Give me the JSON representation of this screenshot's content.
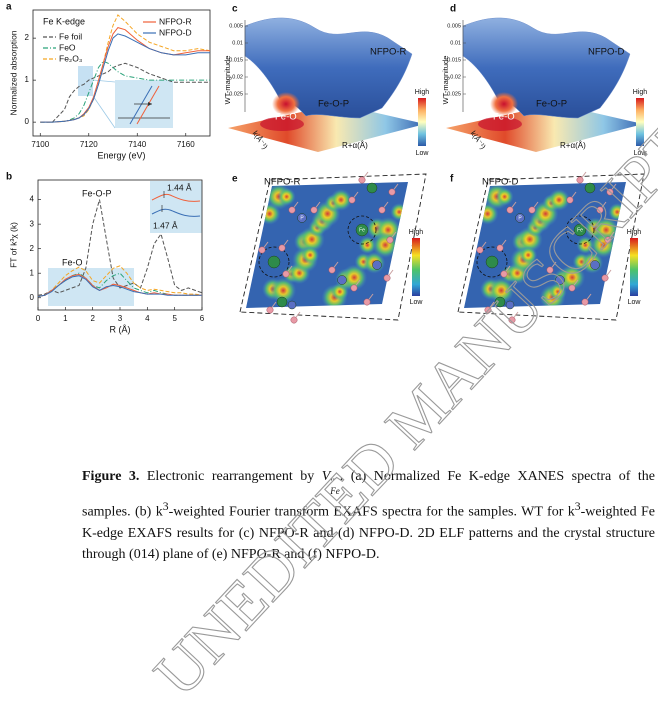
{
  "chart_data": [
    {
      "type": "line",
      "panel_label": "a",
      "annotation": "Fe K-edge",
      "x_label": "Energy (eV)",
      "y_label": "Normalized absorption",
      "x": [
        7100,
        7105,
        7110,
        7112,
        7114,
        7116,
        7118,
        7120,
        7122,
        7124,
        7126,
        7128,
        7130,
        7132,
        7135,
        7140,
        7145,
        7150,
        7155,
        7160,
        7165,
        7170
      ],
      "series": [
        {
          "name": "Fe foil",
          "color": "#555555",
          "dash": "dashed",
          "values": [
            0,
            0,
            0.3,
            0.6,
            0.75,
            0.85,
            0.9,
            1.0,
            1.05,
            1.1,
            1.15,
            1.2,
            1.3,
            1.35,
            1.4,
            1.3,
            1.15,
            1.05,
            0.95,
            0.95,
            0.95,
            0.95
          ]
        },
        {
          "name": "FeO",
          "color": "#2aa37a",
          "dash": "dashdot",
          "values": [
            0,
            0,
            0.02,
            0.05,
            0.1,
            0.2,
            0.4,
            0.7,
            1.0,
            1.3,
            1.45,
            1.4,
            1.3,
            1.2,
            1.1,
            1.05,
            1.0,
            1.0,
            1.0,
            1.0,
            1.0,
            1.0
          ]
        },
        {
          "name": "Fe₂O₃",
          "color": "#f5a623",
          "dash": "dashed",
          "values": [
            0,
            0,
            0.02,
            0.04,
            0.07,
            0.1,
            0.15,
            0.3,
            0.55,
            0.9,
            1.4,
            1.9,
            2.3,
            2.55,
            2.4,
            2.1,
            1.9,
            1.8,
            1.7,
            1.7,
            1.75,
            1.7
          ]
        },
        {
          "name": "NFPO-R",
          "color": "#f0603a",
          "dash": "solid",
          "values": [
            0,
            0,
            0.02,
            0.04,
            0.06,
            0.1,
            0.2,
            0.35,
            0.6,
            1.0,
            1.4,
            1.8,
            2.1,
            2.25,
            2.2,
            1.95,
            1.75,
            1.65,
            1.6,
            1.65,
            1.7,
            1.7
          ]
        },
        {
          "name": "NFPO-D",
          "color": "#3a6fb5",
          "dash": "solid",
          "values": [
            0,
            0,
            0.02,
            0.04,
            0.06,
            0.1,
            0.18,
            0.32,
            0.55,
            0.9,
            1.3,
            1.7,
            2.0,
            2.1,
            2.05,
            1.9,
            1.75,
            1.65,
            1.6,
            1.6,
            1.65,
            1.65
          ]
        }
      ],
      "xlim": [
        7097,
        7170
      ],
      "xticks": [
        7100,
        7120,
        7140,
        7160
      ],
      "ylim": [
        -0.33,
        2.67
      ],
      "yticks": [
        0,
        1,
        2
      ]
    },
    {
      "type": "line",
      "panel_label": "b",
      "x_label": "R (Å)",
      "y_label": "FT of k³χ (k)",
      "annotations": [
        "Fe-O-P",
        "Fe-O",
        "1.44 Å",
        "1.47 Å"
      ],
      "x": [
        0,
        0.25,
        0.5,
        0.75,
        1,
        1.25,
        1.5,
        1.75,
        2,
        2.25,
        2.5,
        2.75,
        3,
        3.25,
        3.5,
        3.75,
        4,
        4.25,
        4.5,
        4.75,
        5,
        5.25,
        5.5,
        5.75,
        6
      ],
      "series": [
        {
          "color": "#555555",
          "dash": "dashed",
          "values": [
            0.1,
            0.15,
            0.3,
            0.2,
            0.3,
            0.4,
            0.5,
            1.2,
            3.0,
            4.0,
            2.4,
            0.8,
            0.4,
            0.5,
            0.6,
            0.4,
            1.2,
            2.2,
            2.6,
            1.6,
            0.5,
            0.3,
            0.4,
            0.3,
            0.2
          ]
        },
        {
          "color": "#2aa37a",
          "dash": "dashdot",
          "values": [
            0.05,
            0.1,
            0.3,
            0.5,
            0.7,
            0.9,
            1.0,
            0.8,
            0.5,
            0.4,
            0.7,
            0.9,
            1.0,
            0.7,
            0.4,
            0.3,
            0.2,
            0.3,
            0.2,
            0.15,
            0.1,
            0.1,
            0.1,
            0.1,
            0.1
          ]
        },
        {
          "color": "#f5a623",
          "dash": "dashed",
          "values": [
            0.05,
            0.1,
            0.3,
            0.6,
            0.9,
            1.1,
            1.25,
            1.1,
            0.7,
            0.6,
            0.9,
            1.2,
            1.3,
            1.0,
            0.6,
            0.4,
            0.3,
            0.35,
            0.3,
            0.25,
            0.2,
            0.2,
            0.15,
            0.15,
            0.1
          ]
        },
        {
          "color": "#f0603a",
          "dash": "solid",
          "values": [
            0.05,
            0.1,
            0.3,
            0.5,
            0.75,
            0.9,
            0.95,
            0.8,
            0.5,
            0.3,
            0.4,
            0.55,
            0.5,
            0.4,
            0.3,
            0.2,
            0.15,
            0.2,
            0.15,
            0.15,
            0.1,
            0.1,
            0.1,
            0.1,
            0.1
          ]
        },
        {
          "color": "#3a6fb5",
          "dash": "solid",
          "values": [
            0.05,
            0.1,
            0.25,
            0.5,
            0.7,
            0.85,
            0.9,
            0.75,
            0.45,
            0.3,
            0.45,
            0.5,
            0.45,
            0.35,
            0.25,
            0.2,
            0.15,
            0.15,
            0.15,
            0.1,
            0.1,
            0.1,
            0.1,
            0.1,
            0.1
          ]
        }
      ],
      "xlim": [
        0,
        6
      ],
      "xticks": [
        0,
        1,
        2,
        3,
        4,
        5,
        6
      ],
      "ylim": [
        -0.5,
        4.8
      ],
      "yticks": [
        0,
        1,
        2,
        3,
        4
      ]
    }
  ],
  "surfaces": [
    {
      "panel_label": "c",
      "sample": "NFPO-R",
      "peak_labels": [
        "Fe-O-P",
        "Fe-O"
      ],
      "z_label": "WT-magnitude",
      "z_ticks": [
        "0.005",
        "0.01",
        "0.015",
        "0.02",
        "0.025"
      ],
      "x_label": "k(Å⁻¹)",
      "y_label": "R+α(Å)",
      "colorbar": [
        "High",
        "Low"
      ]
    },
    {
      "panel_label": "d",
      "sample": "NFPO-D",
      "peak_labels": [
        "Fe-O-P",
        "Fe-O"
      ],
      "z_label": "WT-magnitude",
      "z_ticks": [
        "0.005",
        "0.01",
        "0.015",
        "0.02",
        "0.025"
      ],
      "x_label": "k(Å⁻¹)",
      "y_label": "R+α(Å)",
      "colorbar": [
        "High",
        "Low"
      ]
    }
  ],
  "elf": [
    {
      "panel_label": "e",
      "sample": "NFPO-R",
      "colorbar": [
        "High",
        "Low"
      ],
      "atom_labels": [
        "P",
        "Fe"
      ]
    },
    {
      "panel_label": "f",
      "sample": "NFPO-D",
      "colorbar": [
        "High",
        "Low"
      ],
      "atom_labels": [
        "P",
        "Fe"
      ]
    }
  ],
  "caption": {
    "label": "Figure 3.",
    "runs": [
      " Electronic rearrangement by ",
      "V",
      "′′",
      "Fe",
      ". (a) Normalized Fe K-edge XANES spectra of the samples. (b) k",
      "3",
      "-weighted Fourier transform EXAFS spectra for the samples. WT for k",
      "3",
      "-weighted Fe K-edge EXAFS results for (c) NFPO-R and (d) NFPO-D. 2D ELF patterns and the crystal structure through (014) plane of (e) NFPO-R and (f) NFPO-D."
    ]
  },
  "watermark": "UNEDITED MANUSCRIPT"
}
